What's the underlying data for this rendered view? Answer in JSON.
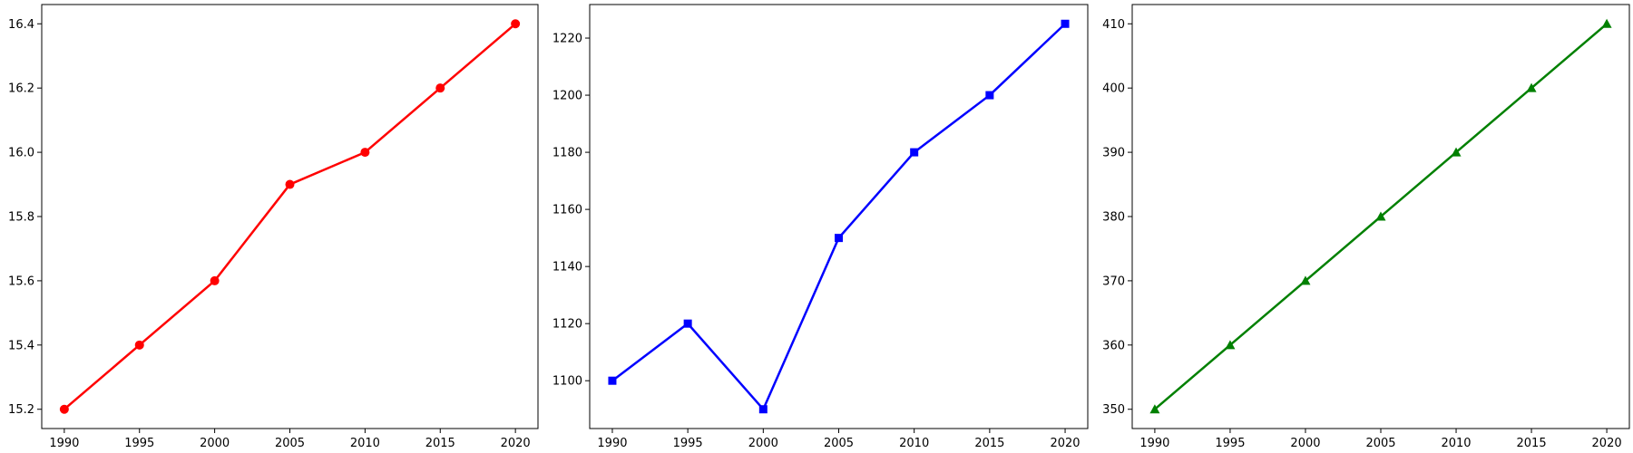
{
  "chart_data": [
    {
      "type": "line",
      "x": [
        1990,
        1995,
        2000,
        2005,
        2010,
        2015,
        2020
      ],
      "series": [
        {
          "values": [
            15.2,
            15.4,
            15.6,
            15.9,
            16.0,
            16.2,
            16.4
          ],
          "color": "#ff0000",
          "marker": "circle"
        }
      ],
      "xticks": [
        "1990",
        "1995",
        "2000",
        "2005",
        "2010",
        "2015",
        "2020"
      ],
      "yticks": [
        "15.2",
        "15.4",
        "15.6",
        "15.8",
        "16.0",
        "16.2",
        "16.4"
      ],
      "xlim": [
        1988.5,
        2021.5
      ],
      "ylim": [
        15.14,
        16.46
      ],
      "grid": false
    },
    {
      "type": "line",
      "x": [
        1990,
        1995,
        2000,
        2005,
        2010,
        2015,
        2020
      ],
      "series": [
        {
          "values": [
            1100,
            1120,
            1090,
            1150,
            1180,
            1200,
            1225
          ],
          "color": "#0000ff",
          "marker": "square"
        }
      ],
      "xticks": [
        "1990",
        "1995",
        "2000",
        "2005",
        "2010",
        "2015",
        "2020"
      ],
      "yticks": [
        "1100",
        "1120",
        "1140",
        "1160",
        "1180",
        "1200",
        "1220"
      ],
      "xlim": [
        1988.5,
        2021.5
      ],
      "ylim": [
        1083.25,
        1231.75
      ],
      "grid": false
    },
    {
      "type": "line",
      "x": [
        1990,
        1995,
        2000,
        2005,
        2010,
        2015,
        2020
      ],
      "series": [
        {
          "values": [
            350,
            360,
            370,
            380,
            390,
            400,
            410
          ],
          "color": "#008000",
          "marker": "triangle"
        }
      ],
      "xticks": [
        "1990",
        "1995",
        "2000",
        "2005",
        "2010",
        "2015",
        "2020"
      ],
      "yticks": [
        "350",
        "360",
        "370",
        "380",
        "390",
        "400",
        "410"
      ],
      "xlim": [
        1988.5,
        2021.5
      ],
      "ylim": [
        347,
        413
      ],
      "grid": false
    }
  ]
}
